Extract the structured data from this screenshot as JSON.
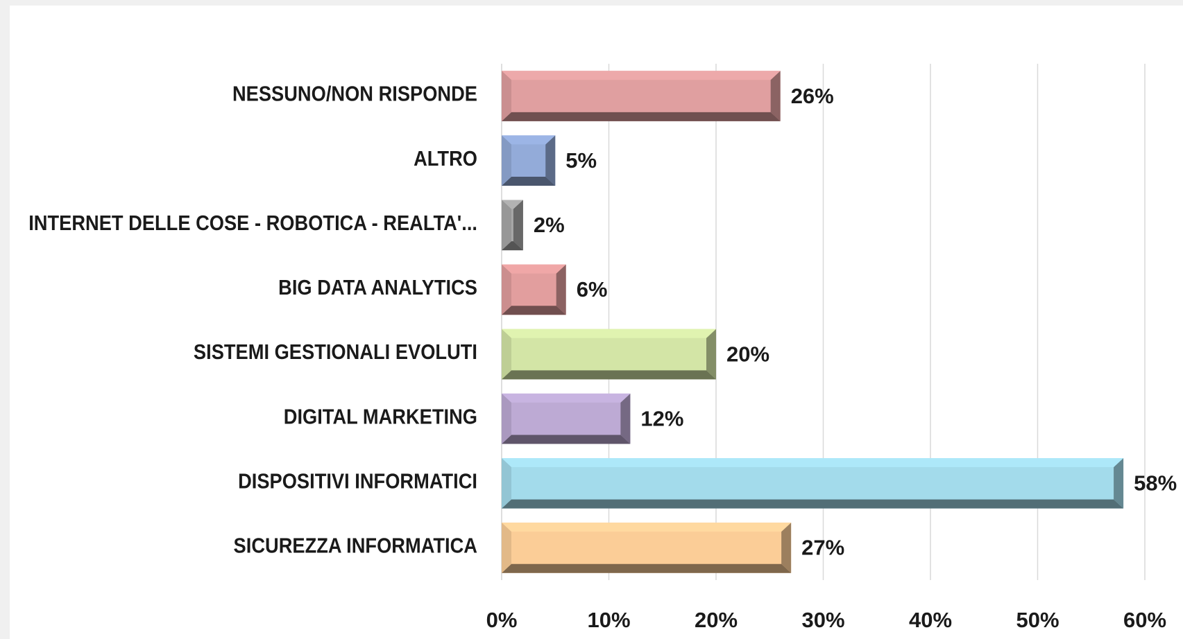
{
  "chart_data": {
    "type": "bar",
    "orientation": "horizontal",
    "categories": [
      "NESSUNO/NON RISPONDE",
      "ALTRO",
      "INTERNET DELLE COSE - ROBOTICA - REALTA'...",
      "BIG DATA ANALYTICS",
      "SISTEMI GESTIONALI EVOLUTI",
      "DIGITAL MARKETING",
      "DISPOSITIVI INFORMATICI",
      "SICUREZZA INFORMATICA"
    ],
    "values": [
      26,
      5,
      2,
      6,
      20,
      12,
      58,
      27
    ],
    "value_labels": [
      "26%",
      "5%",
      "2%",
      "6%",
      "20%",
      "12%",
      "58%",
      "27%"
    ],
    "colors": [
      "#e09fa0",
      "#93abd9",
      "#a8a8a8",
      "#e29e9e",
      "#d3e5a6",
      "#bdaad4",
      "#a3dbeb",
      "#fbcd97"
    ],
    "xlim": [
      0,
      60
    ],
    "xticks": [
      {
        "value": 0,
        "label": "0%"
      },
      {
        "value": 10,
        "label": "10%"
      },
      {
        "value": 20,
        "label": "20%"
      },
      {
        "value": 30,
        "label": "30%"
      },
      {
        "value": 40,
        "label": "40%"
      },
      {
        "value": 50,
        "label": "50%"
      },
      {
        "value": 60,
        "label": "60%"
      }
    ],
    "grid": true
  }
}
